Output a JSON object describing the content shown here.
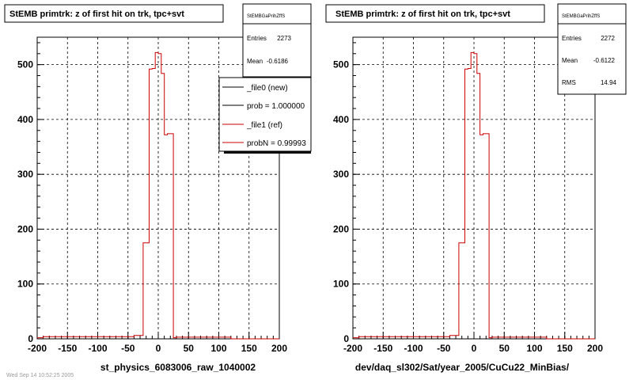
{
  "chart_data": [
    {
      "type": "histogram",
      "title": "StEMB primtrk: z of first hit on trk, tpc+svt",
      "xlabel": "st_physics_6083006_raw_1040002",
      "ylabel": "",
      "xlim": [
        -200,
        200
      ],
      "ylim": [
        0,
        550
      ],
      "grid": true,
      "xticks": [
        "-200",
        "-150",
        "-100",
        "-50",
        "0",
        "50",
        "100",
        "150",
        "200"
      ],
      "yticks": [
        "0",
        "100",
        "200",
        "300",
        "400",
        "500"
      ],
      "stats": {
        "name": "StEMBGaPrihZffS",
        "entries_label": "Entries",
        "entries": "2273",
        "mean_label": "Mean",
        "mean": "-0.6186"
      },
      "legend": {
        "placement": "top-right",
        "entries": [
          {
            "label": "_file0 (new)",
            "color": "#000000"
          },
          {
            "label": "prob = 1.000000",
            "color": "#000000"
          },
          {
            "label": "_file1 (ref)",
            "color": "#cc0000"
          },
          {
            "label": "probN = 0.99993",
            "color": "#cc0000"
          }
        ]
      },
      "series": [
        {
          "color": "#cc0000",
          "bins": [
            [
              -200,
              -190,
              2
            ],
            [
              -190,
              -40,
              4
            ],
            [
              -40,
              -25,
              6
            ],
            [
              -25,
              -15,
              175
            ],
            [
              -15,
              -10,
              492
            ],
            [
              -10,
              -5,
              493
            ],
            [
              -5,
              0,
              522
            ],
            [
              0,
              5,
              520
            ],
            [
              5,
              10,
              484
            ],
            [
              10,
              15,
              372
            ],
            [
              15,
              25,
              374
            ],
            [
              25,
              30,
              2
            ],
            [
              30,
              120,
              3
            ],
            [
              120,
              200,
              0
            ]
          ]
        }
      ]
    },
    {
      "type": "histogram",
      "title": "StEMB primtrk: z of first hit on trk, tpc+svt",
      "xlabel": "dev/daq_sl302/Sat/year_2005/CuCu22_MinBias/",
      "ylabel": "",
      "xlim": [
        -200,
        200
      ],
      "ylim": [
        0,
        550
      ],
      "grid": true,
      "xticks": [
        "-200",
        "-150",
        "-100",
        "-50",
        "0",
        "50",
        "100",
        "150",
        "200"
      ],
      "yticks": [
        "0",
        "100",
        "200",
        "300",
        "400",
        "500"
      ],
      "stats": {
        "name": "StEMBGaPrihZffS",
        "entries_label": "Entries",
        "entries": "2272",
        "mean_label": "Mean",
        "mean": "-0.6122",
        "rms_label": "RMS",
        "rms": "14.94"
      },
      "series": [
        {
          "color": "#cc0000",
          "bins": [
            [
              -200,
              -190,
              2
            ],
            [
              -190,
              -40,
              4
            ],
            [
              -40,
              -25,
              6
            ],
            [
              -25,
              -15,
              175
            ],
            [
              -15,
              -10,
              492
            ],
            [
              -10,
              -5,
              493
            ],
            [
              -5,
              0,
              522
            ],
            [
              0,
              5,
              520
            ],
            [
              5,
              10,
              484
            ],
            [
              10,
              15,
              372
            ],
            [
              15,
              25,
              374
            ],
            [
              25,
              30,
              2
            ],
            [
              30,
              120,
              3
            ],
            [
              120,
              200,
              0
            ]
          ]
        }
      ]
    }
  ],
  "footer": "Wed Sep 14 10:52:25 2005"
}
